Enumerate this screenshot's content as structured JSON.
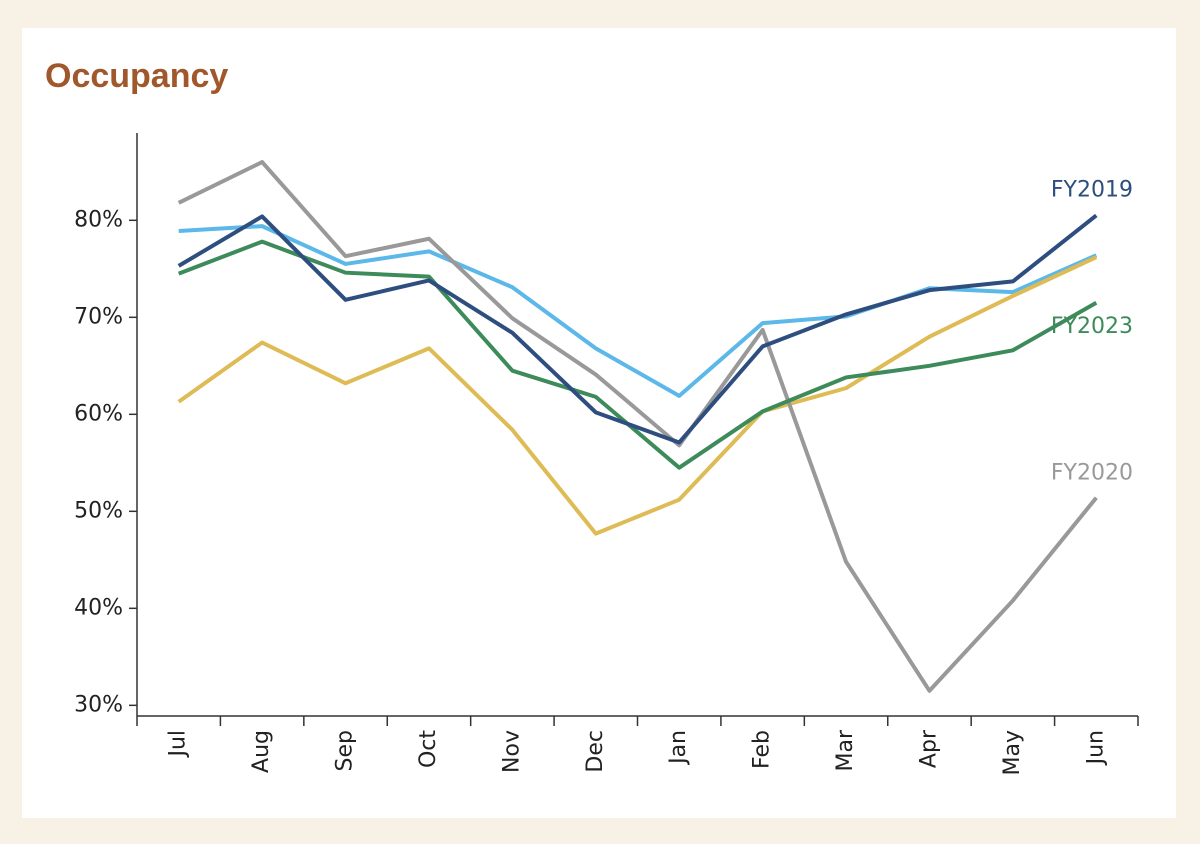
{
  "chart_data": {
    "type": "line",
    "title": "Occupancy",
    "categories": [
      "Jul",
      "Aug",
      "Sep",
      "Oct",
      "Nov",
      "Dec",
      "Jan",
      "Feb",
      "Mar",
      "Apr",
      "May",
      "Jun"
    ],
    "series": [
      {
        "color": "#5bb8e8",
        "values": [
          78.9,
          79.4,
          75.5,
          76.8,
          73.1,
          66.8,
          61.9,
          69.4,
          70.1,
          73.0,
          72.6,
          76.4
        ]
      },
      {
        "color": "#dfbb55",
        "values": [
          61.3,
          67.4,
          63.2,
          66.8,
          58.4,
          47.7,
          51.2,
          60.3,
          62.7,
          68.0,
          72.2,
          76.2
        ]
      },
      {
        "name": "FY2020",
        "color": "#999999",
        "values": [
          81.8,
          86.0,
          76.3,
          78.1,
          69.9,
          64.1,
          56.8,
          68.7,
          44.8,
          31.5,
          40.8,
          51.4
        ]
      },
      {
        "name": "FY2023",
        "color": "#3d8a5a",
        "values": [
          74.5,
          77.8,
          74.6,
          74.2,
          64.5,
          61.8,
          54.5,
          60.3,
          63.8,
          65.0,
          66.6,
          71.5
        ]
      },
      {
        "name": "FY2019",
        "color": "#2d4e7e",
        "values": [
          75.3,
          80.4,
          71.8,
          73.8,
          68.4,
          60.2,
          57.1,
          67.0,
          70.3,
          72.8,
          73.7,
          80.5
        ]
      }
    ],
    "ylim": [
      28.9,
      89
    ],
    "yticks": [
      {
        "value": 30,
        "label": "30%"
      },
      {
        "value": 40,
        "label": "40%"
      },
      {
        "value": 50,
        "label": "50%"
      },
      {
        "value": 60,
        "label": "60%"
      },
      {
        "value": 70,
        "label": "70%"
      },
      {
        "value": 80,
        "label": "80%"
      }
    ]
  }
}
